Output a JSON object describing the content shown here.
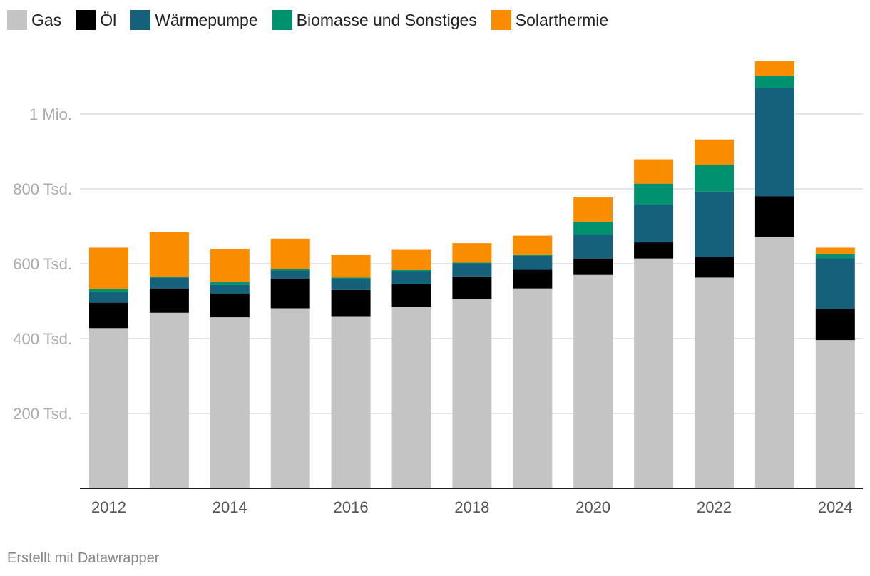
{
  "legend": [
    {
      "label": "Gas",
      "color": "#c4c4c4"
    },
    {
      "label": "Öl",
      "color": "#000000"
    },
    {
      "label": "Wärmepumpe",
      "color": "#15607a"
    },
    {
      "label": "Biomasse und Sonstiges",
      "color": "#00916e"
    },
    {
      "label": "Solarthermie",
      "color": "#fa8c00"
    }
  ],
  "footer": "Erstellt mit Datawrapper",
  "chart_data": {
    "type": "bar",
    "stacked": true,
    "categories": [
      "2012",
      "2013",
      "2014",
      "2015",
      "2016",
      "2017",
      "2018",
      "2019",
      "2020",
      "2021",
      "2022",
      "2023",
      "2024"
    ],
    "x_tick_labels": [
      "2012",
      "",
      "2014",
      "",
      "2016",
      "",
      "2018",
      "",
      "2020",
      "",
      "2022",
      "",
      "2024"
    ],
    "series": [
      {
        "name": "Gas",
        "color": "#c4c4c4",
        "values": [
          428,
          469,
          457,
          481,
          460,
          485,
          506,
          534,
          570,
          614,
          563,
          672,
          396
        ]
      },
      {
        "name": "Öl",
        "color": "#000000",
        "values": [
          68,
          65,
          63,
          78,
          70,
          60,
          60,
          50,
          44,
          43,
          55,
          108,
          83
        ]
      },
      {
        "name": "Wärmepumpe",
        "color": "#15607a",
        "values": [
          28,
          28,
          23,
          23,
          29,
          35,
          35,
          37,
          64,
          101,
          175,
          290,
          136
        ]
      },
      {
        "name": "Biomasse und Sonstiges",
        "color": "#00916e",
        "values": [
          8,
          3,
          8,
          4,
          4,
          3,
          2,
          2,
          34,
          56,
          71,
          31,
          11
        ]
      },
      {
        "name": "Solarthermie",
        "color": "#fa8c00",
        "values": [
          111,
          119,
          89,
          81,
          60,
          56,
          52,
          52,
          65,
          65,
          68,
          40,
          17
        ]
      }
    ],
    "unit": "Tsd.",
    "ylim": [
      0,
      1150
    ],
    "y_ticks": [
      {
        "value": 200,
        "label": "200 Tsd."
      },
      {
        "value": 400,
        "label": "400 Tsd."
      },
      {
        "value": 600,
        "label": "600 Tsd."
      },
      {
        "value": 800,
        "label": "800 Tsd."
      },
      {
        "value": 1000,
        "label": "1 Mio."
      }
    ],
    "grid": true,
    "legend_position": "top-left"
  }
}
